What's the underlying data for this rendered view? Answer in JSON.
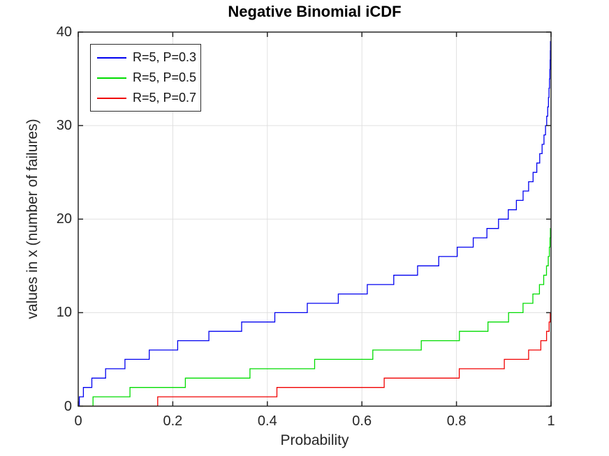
{
  "title": "Negative Binomial iCDF",
  "axes": {
    "xlabel": "Probability",
    "ylabel": "values in x (number of failures)",
    "xticks": [
      "0",
      "0.2",
      "0.4",
      "0.6",
      "0.8",
      "1"
    ],
    "yticks": [
      "0",
      "10",
      "20",
      "30",
      "40"
    ]
  },
  "legend": {
    "position": "top-left",
    "entries": [
      {
        "label": "R=5, P=0.3",
        "color": "#0000f0"
      },
      {
        "label": "R=5, P=0.5",
        "color": "#00dc00"
      },
      {
        "label": "R=5, P=0.7",
        "color": "#f00000"
      }
    ]
  },
  "colors": {
    "background": "#ffffff",
    "grid": "#e0e0e0",
    "axis": "#262626",
    "tick_text": "#262626",
    "title_text": "#000000"
  },
  "chart_data": {
    "type": "line",
    "style": "staircase-inverse-cdf",
    "title": "Negative Binomial iCDF",
    "xlabel": "Probability",
    "ylabel": "values in x (number of failures)",
    "xlim": [
      0,
      1
    ],
    "ylim": [
      0,
      40
    ],
    "grid": true,
    "legend_position": "top-left",
    "xtick_values": [
      0,
      0.2,
      0.4,
      0.6,
      0.8,
      1
    ],
    "ytick_values": [
      0,
      10,
      20,
      30,
      40
    ],
    "p_end": 0.999,
    "series": [
      {
        "name": "R=5, P=0.3",
        "R": 5,
        "P": 0.3,
        "color": "#0000f0",
        "max_value": 39,
        "step_probabilities": [
          0.00243,
          0.01094,
          0.0288,
          0.05797,
          0.09881,
          0.15027,
          0.2103,
          0.27634,
          0.34569,
          0.4158,
          0.48451,
          0.5501,
          0.61131,
          0.66734,
          0.71778,
          0.76249,
          0.80162,
          0.83545,
          0.8644,
          0.88892,
          0.90953,
          0.9267,
          0.9409,
          0.95257,
          0.9621,
          0.96984,
          0.9761,
          0.98112,
          0.98514,
          0.98834,
          0.99088,
          0.99289,
          0.99447,
          0.99571,
          0.99668,
          0.99744,
          0.99803,
          0.99848,
          0.99884
        ]
      },
      {
        "name": "R=5, P=0.5",
        "R": 5,
        "P": 0.5,
        "color": "#00dc00",
        "max_value": 19,
        "step_probabilities": [
          0.03125,
          0.10938,
          0.22656,
          0.36328,
          0.5,
          0.62305,
          0.72559,
          0.80615,
          0.86658,
          0.91022,
          0.94076,
          0.96159,
          0.97548,
          0.98456,
          0.9904,
          0.99409,
          0.9964,
          0.99783,
          0.9987
        ]
      },
      {
        "name": "R=5, P=0.7",
        "R": 5,
        "P": 0.7,
        "color": "#f00000",
        "max_value": 10,
        "step_probabilities": [
          0.16807,
          0.42018,
          0.64707,
          0.8059,
          0.90119,
          0.95265,
          0.97838,
          0.99051,
          0.99597,
          0.99834
        ]
      }
    ]
  }
}
